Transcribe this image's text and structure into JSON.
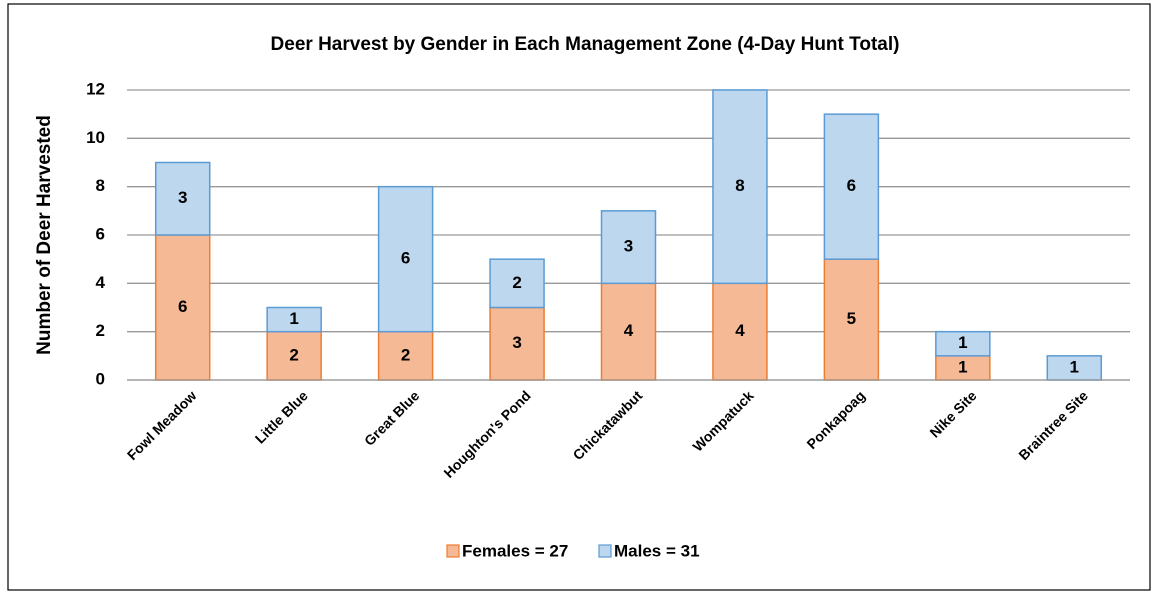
{
  "chart_data": {
    "type": "stacked_bar",
    "title": "Deer Harvest by Gender in Each Management Zone (4-Day Hunt Total)",
    "y_label": "Number of Deer Harvested",
    "categories": [
      "Fowl Meadow",
      "Little Blue",
      "Great Blue",
      "Houghton's Pond",
      "Chickatawbut",
      "Wompatuck",
      "Ponkapoag",
      "Nike Site",
      "Braintree Site"
    ],
    "series": [
      {
        "name": "Females = 27",
        "color": "#f6b995",
        "edge": "#ed7d31",
        "values": [
          6,
          2,
          2,
          3,
          4,
          4,
          5,
          1,
          0
        ],
        "value_labels": [
          "6",
          "2",
          "2",
          "3",
          "4",
          "4",
          "5",
          "1",
          null
        ]
      },
      {
        "name": "Males = 31",
        "color": "#bdd7ee",
        "edge": "#5b9bd5",
        "values": [
          3,
          1,
          6,
          2,
          3,
          8,
          6,
          1,
          1
        ]
      }
    ],
    "ylim": [
      0,
      12
    ],
    "yticks": [
      0,
      2,
      4,
      6,
      8,
      10,
      12
    ],
    "grid": true,
    "legend": "bottom"
  }
}
